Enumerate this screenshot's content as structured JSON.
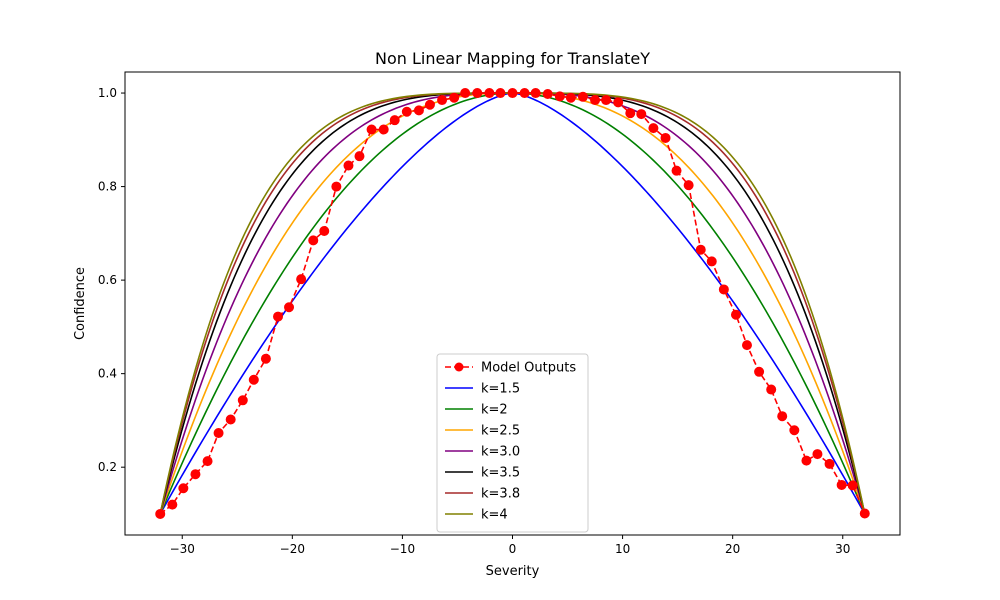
{
  "chart_data": {
    "type": "line",
    "title": "Non Linear Mapping for TranslateY",
    "xlabel": "Severity",
    "ylabel": "Confidence",
    "xlim": [
      -35.2,
      35.2
    ],
    "ylim": [
      0.055,
      1.045
    ],
    "xticks": [
      -30,
      -20,
      -10,
      0,
      10,
      20,
      30
    ],
    "xtick_labels": [
      "−30",
      "−20",
      "−10",
      "0",
      "10",
      "20",
      "30"
    ],
    "yticks": [
      0.2,
      0.4,
      0.6,
      0.8,
      1.0
    ],
    "ytick_labels": [
      "0.2",
      "0.4",
      "0.6",
      "0.8",
      "1.0"
    ],
    "grid": false,
    "legend_position": "lower center",
    "model_outputs": {
      "name": "Model Outputs",
      "color": "#ff0000",
      "style": "dashed-with-circles",
      "x": [
        -32,
        -30.9,
        -29.9,
        -28.8,
        -27.7,
        -26.7,
        -25.6,
        -24.5,
        -23.5,
        -22.4,
        -21.3,
        -20.3,
        -19.2,
        -18.1,
        -17.1,
        -16.0,
        -14.9,
        -13.9,
        -12.8,
        -11.7,
        -10.7,
        -9.6,
        -8.5,
        -7.5,
        -6.4,
        -5.3,
        -4.3,
        -3.2,
        -2.1,
        -1.1,
        0,
        1.1,
        2.1,
        3.2,
        4.3,
        5.3,
        6.4,
        7.5,
        8.5,
        9.6,
        10.7,
        11.7,
        12.8,
        13.9,
        14.9,
        16.0,
        17.1,
        18.1,
        19.2,
        20.3,
        21.3,
        22.4,
        23.5,
        24.5,
        25.6,
        26.7,
        27.7,
        28.8,
        29.9,
        30.9,
        32
      ],
      "y": [
        0.1,
        0.12,
        0.155,
        0.185,
        0.213,
        0.273,
        0.302,
        0.343,
        0.387,
        0.432,
        0.522,
        0.542,
        0.602,
        0.685,
        0.705,
        0.8,
        0.845,
        0.865,
        0.922,
        0.922,
        0.942,
        0.96,
        0.963,
        0.975,
        0.985,
        0.99,
        1.0,
        1.0,
        1.0,
        1.0,
        1.0,
        1.0,
        1.0,
        0.998,
        0.993,
        0.99,
        0.992,
        0.985,
        0.985,
        0.98,
        0.957,
        0.955,
        0.925,
        0.904,
        0.834,
        0.803,
        0.665,
        0.64,
        0.58,
        0.526,
        0.461,
        0.404,
        0.366,
        0.309,
        0.279,
        0.214,
        0.228,
        0.207,
        0.162,
        0.161,
        0.101
      ]
    },
    "curves": [
      {
        "name": "k=1.5",
        "k": 1.5,
        "color": "#0000ff"
      },
      {
        "name": "k=2",
        "k": 2,
        "color": "#008000"
      },
      {
        "name": "k=2.5",
        "k": 2.5,
        "color": "#ffa500"
      },
      {
        "name": "k=3.0",
        "k": 3.0,
        "color": "#800080"
      },
      {
        "name": "k=3.5",
        "k": 3.5,
        "color": "#000000"
      },
      {
        "name": "k=3.8",
        "k": 3.8,
        "color": "#a52a2a"
      },
      {
        "name": "k=4",
        "k": 4,
        "color": "#808000"
      }
    ],
    "curve_model": {
      "y_min": 0.1,
      "y_max": 1.0,
      "x_half_range": 32
    }
  }
}
